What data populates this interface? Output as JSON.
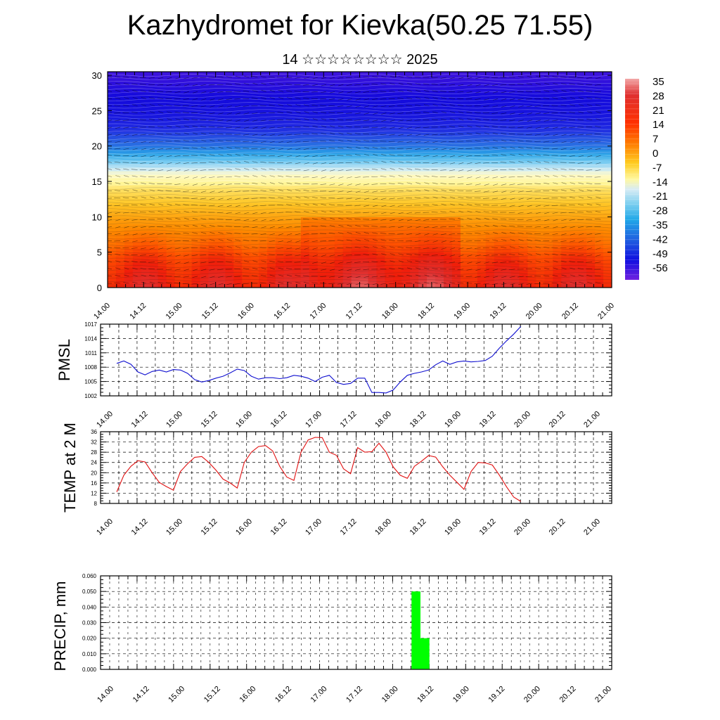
{
  "header": {
    "title": "Kazhydromet for Kievka(50.25 71.55)",
    "subtitle": "14 ☆☆☆☆☆☆☆☆ 2025"
  },
  "chart_data": [
    {
      "type": "heatmap",
      "title": "",
      "xlabel": "",
      "ylabel": "",
      "x_tick_labels": [
        "14.00",
        "14.12",
        "15.00",
        "15.12",
        "16.00",
        "16.12",
        "17.00",
        "17.12",
        "18.00",
        "18.12",
        "19.00",
        "19.12",
        "20.00",
        "20.12",
        "21.00"
      ],
      "y_ticks": [
        0,
        5,
        10,
        15,
        20,
        25,
        30
      ],
      "ylim": [
        0,
        30.5
      ],
      "colorbar": {
        "labels": [
          "35",
          "28",
          "21",
          "14",
          "7",
          "0",
          "-7",
          "-14",
          "-21",
          "-28",
          "-35",
          "-42",
          "-49",
          "-56"
        ],
        "range": [
          -63,
          40
        ]
      },
      "temperature_profile_by_level": {
        "levels": [
          0,
          2,
          4,
          6,
          8,
          10,
          12,
          14,
          15,
          16,
          17,
          18,
          19,
          20,
          21,
          22,
          23,
          24,
          25,
          26,
          27,
          28,
          29,
          30
        ],
        "values": [
          25,
          22,
          18,
          12,
          8,
          4,
          0,
          -4,
          -8,
          -13,
          -19,
          -26,
          -32,
          -38,
          -42,
          -46,
          -49,
          -52,
          -54,
          -55,
          -56,
          -57,
          -58,
          -59
        ]
      },
      "grid": true,
      "contour_lines": true,
      "wind_barbs": true
    },
    {
      "type": "line",
      "ylabel": "PMSL",
      "color": "#1010d0",
      "x_tick_labels": [
        "14.00",
        "14.12",
        "15.00",
        "15.12",
        "16.00",
        "16.12",
        "17.00",
        "17.12",
        "18.00",
        "18.12",
        "19.00",
        "19.12",
        "20.00",
        "20.12",
        "21.00"
      ],
      "y_tick_labels": [
        "1017",
        "1014",
        "1011",
        "1008",
        "1005",
        "1002"
      ],
      "ylim": [
        1002,
        1017
      ],
      "grid": true,
      "series": [
        {
          "values": [
            1008.8,
            1009.3,
            1008.6,
            1007.0,
            1006.4,
            1007.1,
            1007.4,
            1007.0,
            1007.5,
            1007.4,
            1006.7,
            1005.4,
            1004.9,
            1005.2,
            1005.7,
            1006.1,
            1006.8,
            1007.6,
            1007.3,
            1006.1,
            1005.5,
            1005.8,
            1005.8,
            1005.6,
            1005.8,
            1006.3,
            1006.1,
            1005.7,
            1005.0,
            1005.9,
            1006.3,
            1004.8,
            1004.4,
            1004.6,
            1005.7,
            1005.7,
            1002.7,
            1002.7,
            1002.6,
            1003.2,
            1004.9,
            1006.3,
            1006.7,
            1007.0,
            1007.4,
            1008.5,
            1009.3,
            1008.6,
            1009.1,
            1009.3,
            1009.1,
            1009.2,
            1009.4,
            1010.3,
            1012.0,
            1013.5,
            1014.9,
            1016.5
          ]
        }
      ]
    },
    {
      "type": "line",
      "ylabel": "TEMP at 2 M",
      "color": "#e01010",
      "x_tick_labels": [
        "14.00",
        "14.12",
        "15.00",
        "15.12",
        "16.00",
        "16.12",
        "17.00",
        "17.12",
        "18.00",
        "18.12",
        "19.00",
        "19.12",
        "20.00",
        "20.12",
        "21.00"
      ],
      "y_tick_labels": [
        "36",
        "32",
        "28",
        "24",
        "20",
        "16",
        "12",
        "8"
      ],
      "ylim": [
        8,
        36
      ],
      "grid": true,
      "series": [
        {
          "values": [
            12.5,
            19.0,
            22.5,
            24.7,
            24.2,
            20.0,
            16.2,
            14.6,
            13.2,
            20.5,
            23.5,
            26.0,
            26.3,
            24.0,
            21.0,
            17.5,
            16.0,
            14.0,
            24.0,
            28.0,
            30.2,
            30.6,
            28.5,
            22.5,
            18.3,
            17.0,
            28.0,
            32.8,
            33.8,
            33.7,
            28.0,
            26.8,
            21.5,
            19.6,
            29.8,
            28.0,
            28.2,
            31.5,
            28.0,
            22.3,
            19.0,
            17.8,
            22.5,
            24.5,
            26.7,
            26.1,
            22.3,
            19.0,
            16.3,
            13.5,
            20.5,
            24.0,
            23.8,
            23.0,
            19.0,
            14.5,
            10.5,
            8.8
          ]
        }
      ]
    },
    {
      "type": "bar",
      "ylabel": "PRECIP, mm",
      "color": "#00ff00",
      "x_tick_labels": [
        "14.00",
        "14.12",
        "15.00",
        "15.12",
        "16.00",
        "16.12",
        "17.00",
        "17.12",
        "18.00",
        "18.12",
        "19.00",
        "19.12",
        "20.00",
        "20.12",
        "21.00"
      ],
      "y_tick_labels": [
        "0.060",
        "0.050",
        "0.040",
        "0.030",
        "0.020",
        "0.010",
        "0.000"
      ],
      "ylim": [
        0,
        0.06
      ],
      "grid": true,
      "bars": [
        {
          "x": "18.06",
          "value": 0.05
        },
        {
          "x": "18.09",
          "value": 0.02
        }
      ]
    }
  ]
}
